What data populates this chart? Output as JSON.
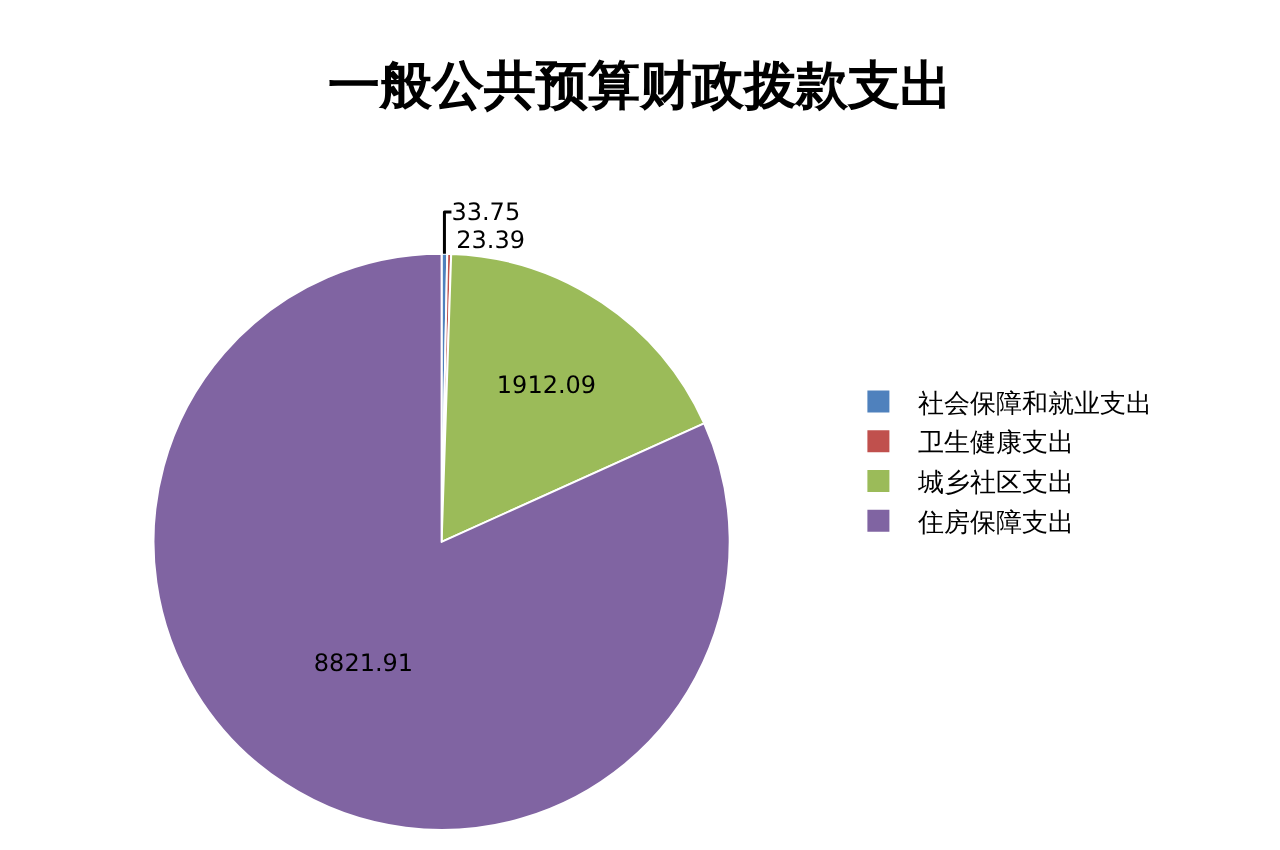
{
  "chart_data": {
    "type": "pie",
    "title": "一般公共预算财政拨款支出",
    "categories": [
      "社会保障和就业支出",
      "卫生健康支出",
      "城乡社区支出",
      "住房保障支出"
    ],
    "values": [
      33.75,
      23.39,
      1912.09,
      8821.91
    ],
    "colors": [
      "#4f81bd",
      "#c0504d",
      "#9bbb59",
      "#8064a2"
    ],
    "data_labels": true,
    "legend": "right"
  }
}
